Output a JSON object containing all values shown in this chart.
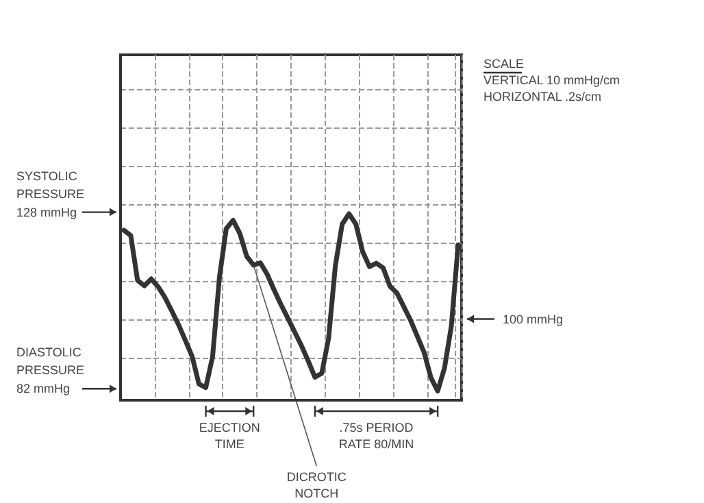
{
  "chart_data": {
    "type": "line",
    "color": "#333333",
    "marker": "none",
    "grid": true,
    "categories": [
      null,
      null,
      null,
      null,
      null,
      null,
      null,
      null,
      null,
      null,
      null,
      null,
      null,
      null,
      null,
      null,
      null,
      null,
      null,
      null,
      null,
      null,
      null,
      null,
      null,
      null,
      null,
      null,
      null,
      null,
      null,
      null,
      null,
      null,
      null,
      null,
      null,
      null,
      null,
      null,
      null,
      null,
      null,
      null,
      null,
      null,
      null,
      null,
      null,
      null
    ],
    "values": [
      123.3,
      121.9,
      110.2,
      108.8,
      110.6,
      108.6,
      105.8,
      102.3,
      98.7,
      94.6,
      90.4,
      83.2,
      82.3,
      90.4,
      111.0,
      123.7,
      125.9,
      122.4,
      116.5,
      114.2,
      114.8,
      111.8,
      107.8,
      104.0,
      100.5,
      96.9,
      93.3,
      89.3,
      85.0,
      86.0,
      95.1,
      114.1,
      124.9,
      127.6,
      124.9,
      117.7,
      113.8,
      114.7,
      113.5,
      108.7,
      107.0,
      103.5,
      99.9,
      95.7,
      91.5,
      84.9,
      81.4,
      87.4,
      98.3,
      119.5
    ],
    "ylim": [
      79,
      169
    ],
    "yticks": [
      {
        "value": 82,
        "label": "82 mmHg"
      },
      {
        "value": 90,
        "label": null
      },
      {
        "value": 100,
        "label": null
      },
      {
        "value": 110,
        "label": null
      },
      {
        "value": 120,
        "label": null
      },
      {
        "value": 128,
        "label": "128 mmHg"
      },
      {
        "value": 130,
        "label": null
      },
      {
        "value": 140,
        "label": null
      },
      {
        "value": 150,
        "label": null
      },
      {
        "value": 160,
        "label": null
      }
    ],
    "annotations": [
      "SCALE",
      "VERTICAL 10 mmHg/cm",
      "HORIZONTAL .2s/cm",
      "EJECTION\nTIME",
      ".75s PERIOD\nRATE 80/MIN",
      "DICROTIC\nNOTCH",
      "SYSTOLIC\nPRESSURE",
      "DIASTOLIC\nPRESSURE",
      "100 mmHg"
    ]
  }
}
